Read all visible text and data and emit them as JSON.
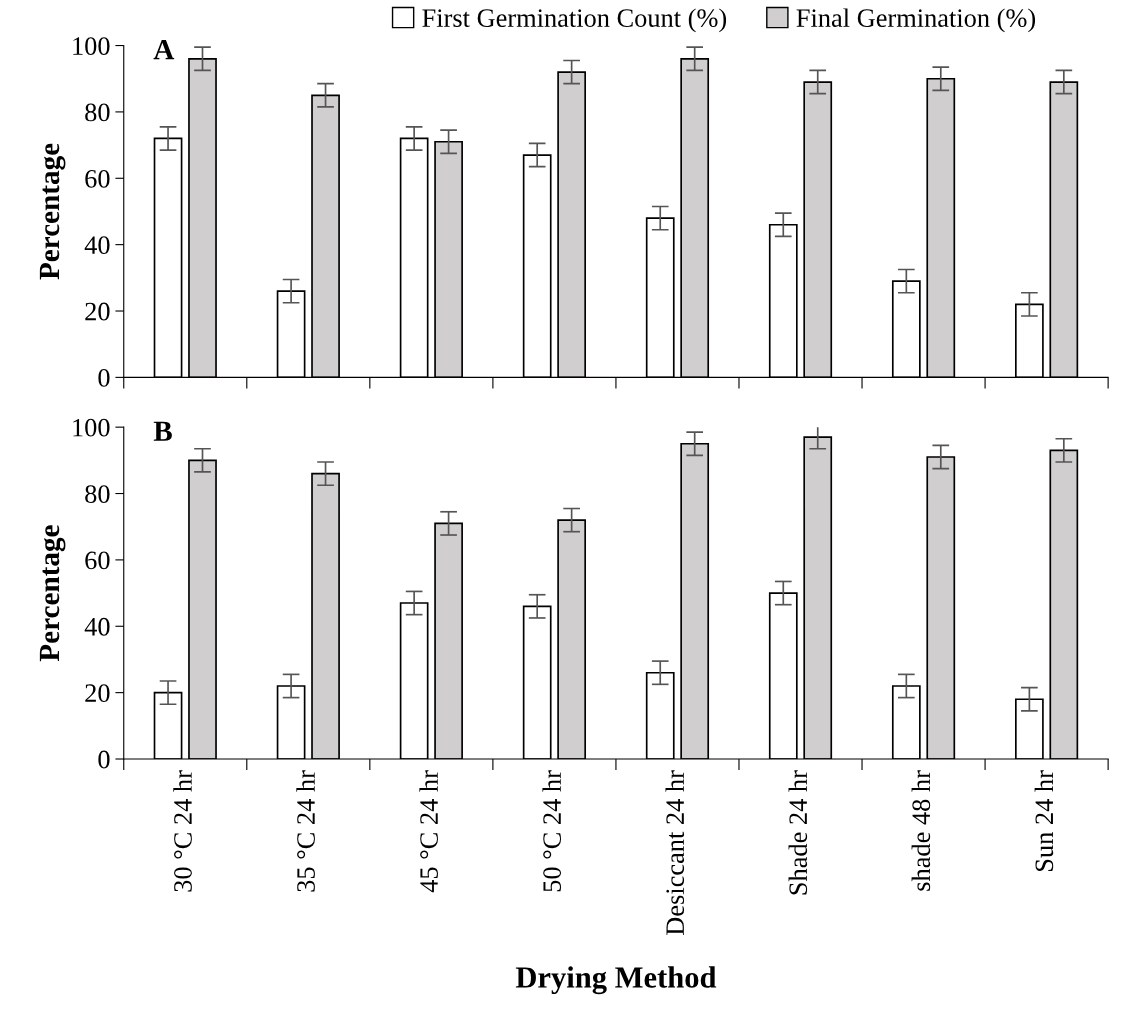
{
  "chart_data": [
    {
      "type": "bar",
      "title": "A",
      "ylabel": "Percentage",
      "categories": [
        null,
        null,
        null,
        null,
        null,
        null,
        null,
        null
      ],
      "series": [
        {
          "name": "First Germination Count (%)",
          "color": "#ffffff",
          "values": [
            72,
            26,
            72,
            67,
            48,
            46,
            29,
            22
          ],
          "errors": [
            3.5,
            3.5,
            3.5,
            3.5,
            3.5,
            3.5,
            3.5,
            3.5
          ]
        },
        {
          "name": "Final Germination (%)",
          "color": "#d0cecf",
          "values": [
            96,
            85,
            71,
            92,
            96,
            89,
            90,
            89
          ],
          "errors": [
            3.5,
            3.5,
            3.5,
            3.5,
            3.5,
            3.5,
            3.5,
            3.5
          ]
        }
      ],
      "ylim": [
        0,
        100
      ],
      "yticks": [
        0,
        20,
        40,
        60,
        80,
        100
      ],
      "tick_labels": "y",
      "legend": "top",
      "grid": false
    },
    {
      "type": "bar",
      "title": "B",
      "ylabel": "Percentage",
      "xlabel": "Drying Method",
      "categories": [
        "30 °C 24 hr",
        "35 °C 24 hr",
        "45 °C 24 hr",
        "50 °C 24 hr",
        "Desiccant 24 hr",
        "Shade 24 hr",
        "shade 48 hr",
        "Sun 24 hr"
      ],
      "series": [
        {
          "color": "#ffffff",
          "values": [
            20,
            22,
            47,
            46,
            26,
            50,
            22,
            18
          ],
          "errors": [
            3.5,
            3.5,
            3.5,
            3.5,
            3.5,
            3.5,
            3.5,
            3.5
          ]
        },
        {
          "color": "#d0cecf",
          "values": [
            90,
            86,
            71,
            72,
            95,
            97,
            91,
            93
          ],
          "errors": [
            3.5,
            3.5,
            3.5,
            3.5,
            3.5,
            3.5,
            3.5,
            3.5
          ]
        }
      ],
      "ylim": [
        0,
        100
      ],
      "yticks": [
        0,
        20,
        40,
        60,
        80,
        100
      ],
      "legend": false,
      "grid": false
    }
  ]
}
